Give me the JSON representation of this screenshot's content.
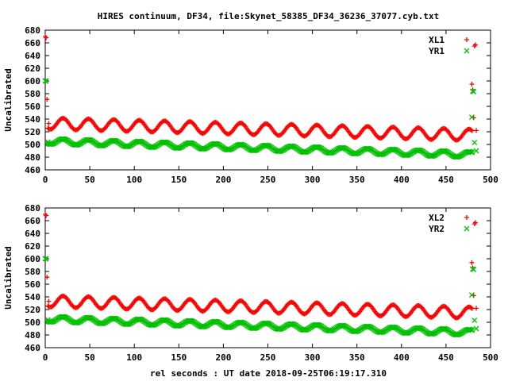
{
  "title": "HIRES continuum, DF34, file:Skynet_58385_DF34_36236_37077.cyb.txt",
  "xlabel": "rel seconds : UT date 2018-09-25T06:19:17.310",
  "colors": {
    "series_a": "#ff0000",
    "series_b": "#00c000"
  },
  "chart_data": [
    {
      "type": "scatter",
      "ylabel": "Uncalibrated",
      "xlim": [
        0,
        500
      ],
      "ylim": [
        460,
        680
      ],
      "xticks": [
        0,
        50,
        100,
        150,
        200,
        250,
        300,
        350,
        400,
        450,
        500
      ],
      "yticks": [
        460,
        480,
        500,
        520,
        540,
        560,
        580,
        600,
        620,
        640,
        660,
        680
      ],
      "legend_position": "top-right",
      "series": [
        {
          "name": "XL1",
          "marker": "+",
          "model": {
            "x_start": 3,
            "x_end": 480,
            "step": 1.2,
            "base_start": 533,
            "base_end": 515,
            "amplitude": 9,
            "period": 28.5
          },
          "outliers": [
            [
              0,
              670
            ],
            [
              1,
              668
            ],
            [
              2,
              571
            ],
            [
              4,
              533
            ],
            [
              479,
              595
            ],
            [
              480,
              586
            ],
            [
              481,
              542
            ],
            [
              482,
              655
            ],
            [
              483,
              657
            ],
            [
              484,
              522
            ]
          ]
        },
        {
          "name": "YR1",
          "marker": "x",
          "model": {
            "x_start": 3,
            "x_end": 480,
            "step": 1.2,
            "base_start": 505,
            "base_end": 484,
            "amplitude": 4.5,
            "period": 28.5
          },
          "outliers": [
            [
              0,
              600
            ],
            [
              1,
              600
            ],
            [
              3,
              504
            ],
            [
              479,
              543
            ],
            [
              480,
              584
            ],
            [
              481,
              583
            ],
            [
              482,
              503
            ],
            [
              484,
              490
            ]
          ]
        }
      ]
    },
    {
      "type": "scatter",
      "ylabel": "Uncalibrated",
      "xlim": [
        0,
        500
      ],
      "ylim": [
        460,
        680
      ],
      "xticks": [
        0,
        50,
        100,
        150,
        200,
        250,
        300,
        350,
        400,
        450,
        500
      ],
      "yticks": [
        460,
        480,
        500,
        520,
        540,
        560,
        580,
        600,
        620,
        640,
        660,
        680
      ],
      "legend_position": "top-right",
      "series": [
        {
          "name": "XL2",
          "marker": "+",
          "model": {
            "x_start": 3,
            "x_end": 480,
            "step": 1.2,
            "base_start": 533,
            "base_end": 515,
            "amplitude": 9,
            "period": 28.5
          },
          "outliers": [
            [
              0,
              670
            ],
            [
              1,
              668
            ],
            [
              2,
              571
            ],
            [
              4,
              533
            ],
            [
              479,
              594
            ],
            [
              480,
              586
            ],
            [
              481,
              542
            ],
            [
              482,
              655
            ],
            [
              483,
              657
            ],
            [
              484,
              522
            ]
          ]
        },
        {
          "name": "YR2",
          "marker": "x",
          "model": {
            "x_start": 3,
            "x_end": 480,
            "step": 1.2,
            "base_start": 505,
            "base_end": 484,
            "amplitude": 4.5,
            "period": 28.5
          },
          "outliers": [
            [
              0,
              600
            ],
            [
              1,
              600
            ],
            [
              3,
              504
            ],
            [
              479,
              543
            ],
            [
              480,
              584
            ],
            [
              481,
              583
            ],
            [
              482,
              503
            ],
            [
              484,
              490
            ]
          ]
        }
      ]
    }
  ]
}
